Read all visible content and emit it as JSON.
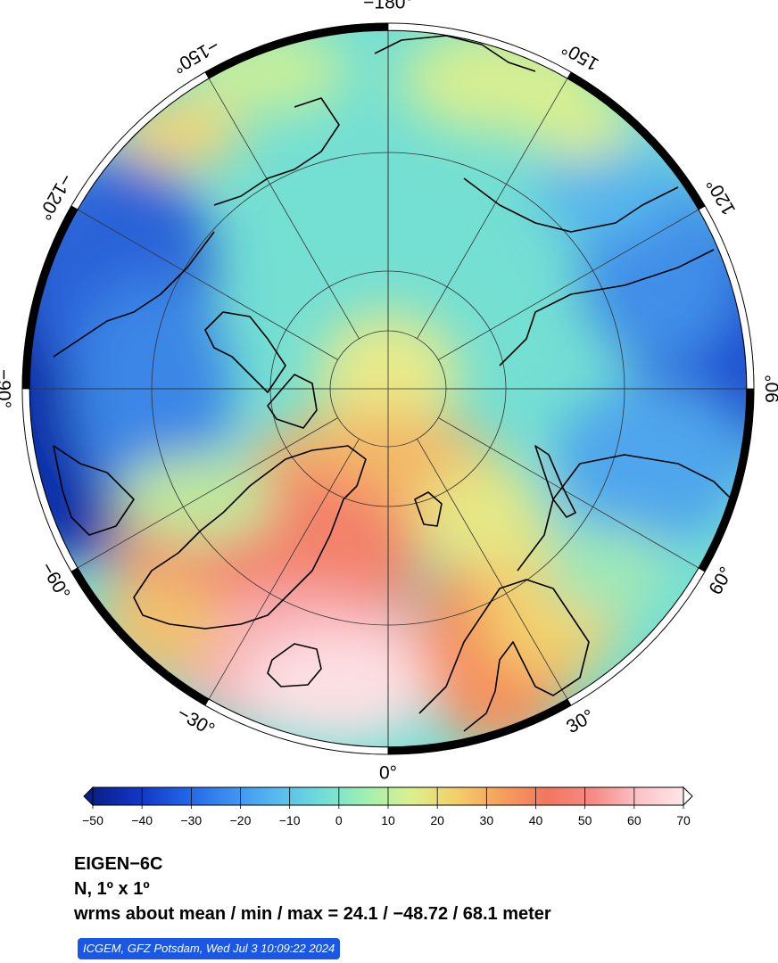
{
  "map": {
    "projection": "polar-stereographic-north",
    "center_lon_bottom": 0,
    "meridian_labels": [
      {
        "lon": -180,
        "text": "−180°"
      },
      {
        "lon": -150,
        "text": "−150°"
      },
      {
        "lon": -120,
        "text": "−120°"
      },
      {
        "lon": -90,
        "text": "−90°"
      },
      {
        "lon": -60,
        "text": "−60°"
      },
      {
        "lon": -30,
        "text": "−30°"
      },
      {
        "lon": 0,
        "text": "0°"
      },
      {
        "lon": 30,
        "text": "30°"
      },
      {
        "lon": 60,
        "text": "60°"
      },
      {
        "lon": 90,
        "text": "90°"
      },
      {
        "lon": 120,
        "text": "120°"
      },
      {
        "lon": 150,
        "text": "150°"
      }
    ]
  },
  "colorbar": {
    "min": -50,
    "max": 70,
    "ticks": [
      "−50",
      "−40",
      "−30",
      "−20",
      "−10",
      "0",
      "10",
      "20",
      "30",
      "40",
      "50",
      "60",
      "70"
    ],
    "stops": [
      "#0a1f8a",
      "#1036c4",
      "#1f62e6",
      "#3b8ef0",
      "#56b9ef",
      "#6fdcd9",
      "#9ff0b2",
      "#dcf08e",
      "#f3cf6a",
      "#f4a05e",
      "#f3765f",
      "#f58a86",
      "#fbc2c6",
      "#ffe6ea"
    ]
  },
  "info": {
    "title": "EIGEN−6C",
    "subtitle": "N, 1º x 1º",
    "stats": "wrms about mean / min / max = 24.1 / −48.72 / 68.1 meter",
    "credit": "ICGEM, GFZ Potsdam, Wed Jul 3 10:09:22 2024"
  }
}
